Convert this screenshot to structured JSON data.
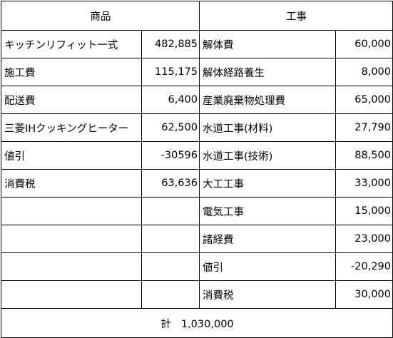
{
  "headers": {
    "goods": "商品",
    "construction": "工事"
  },
  "rows": [
    {
      "goods_item": "キッチンリフィット一式",
      "goods_amount": "482,885",
      "work_item": "解体費",
      "work_amount": "60,000"
    },
    {
      "goods_item": "施工費",
      "goods_amount": "115,175",
      "work_item": "解体経路養生",
      "work_amount": "8,000"
    },
    {
      "goods_item": "配送費",
      "goods_amount": "6,400",
      "work_item": "産業廃棄物処理費",
      "work_amount": "65,000"
    },
    {
      "goods_item": "三菱IHクッキングヒーター",
      "goods_amount": "62,500",
      "work_item": "水道工事(材料)",
      "work_amount": "27,790"
    },
    {
      "goods_item": "値引",
      "goods_amount": "-30596",
      "work_item": "水道工事(技術)",
      "work_amount": "88,500"
    },
    {
      "goods_item": "消費税",
      "goods_amount": "63,636",
      "work_item": "大工工事",
      "work_amount": "33,000"
    },
    {
      "goods_item": "",
      "goods_amount": "",
      "work_item": "電気工事",
      "work_amount": "15,000"
    },
    {
      "goods_item": "",
      "goods_amount": "",
      "work_item": "諸経費",
      "work_amount": "23,000"
    },
    {
      "goods_item": "",
      "goods_amount": "",
      "work_item": "値引",
      "work_amount": "-20,290"
    },
    {
      "goods_item": "",
      "goods_amount": "",
      "work_item": "消費税",
      "work_amount": "30,000"
    }
  ],
  "total": {
    "label": "計",
    "value": "1,030,000"
  }
}
